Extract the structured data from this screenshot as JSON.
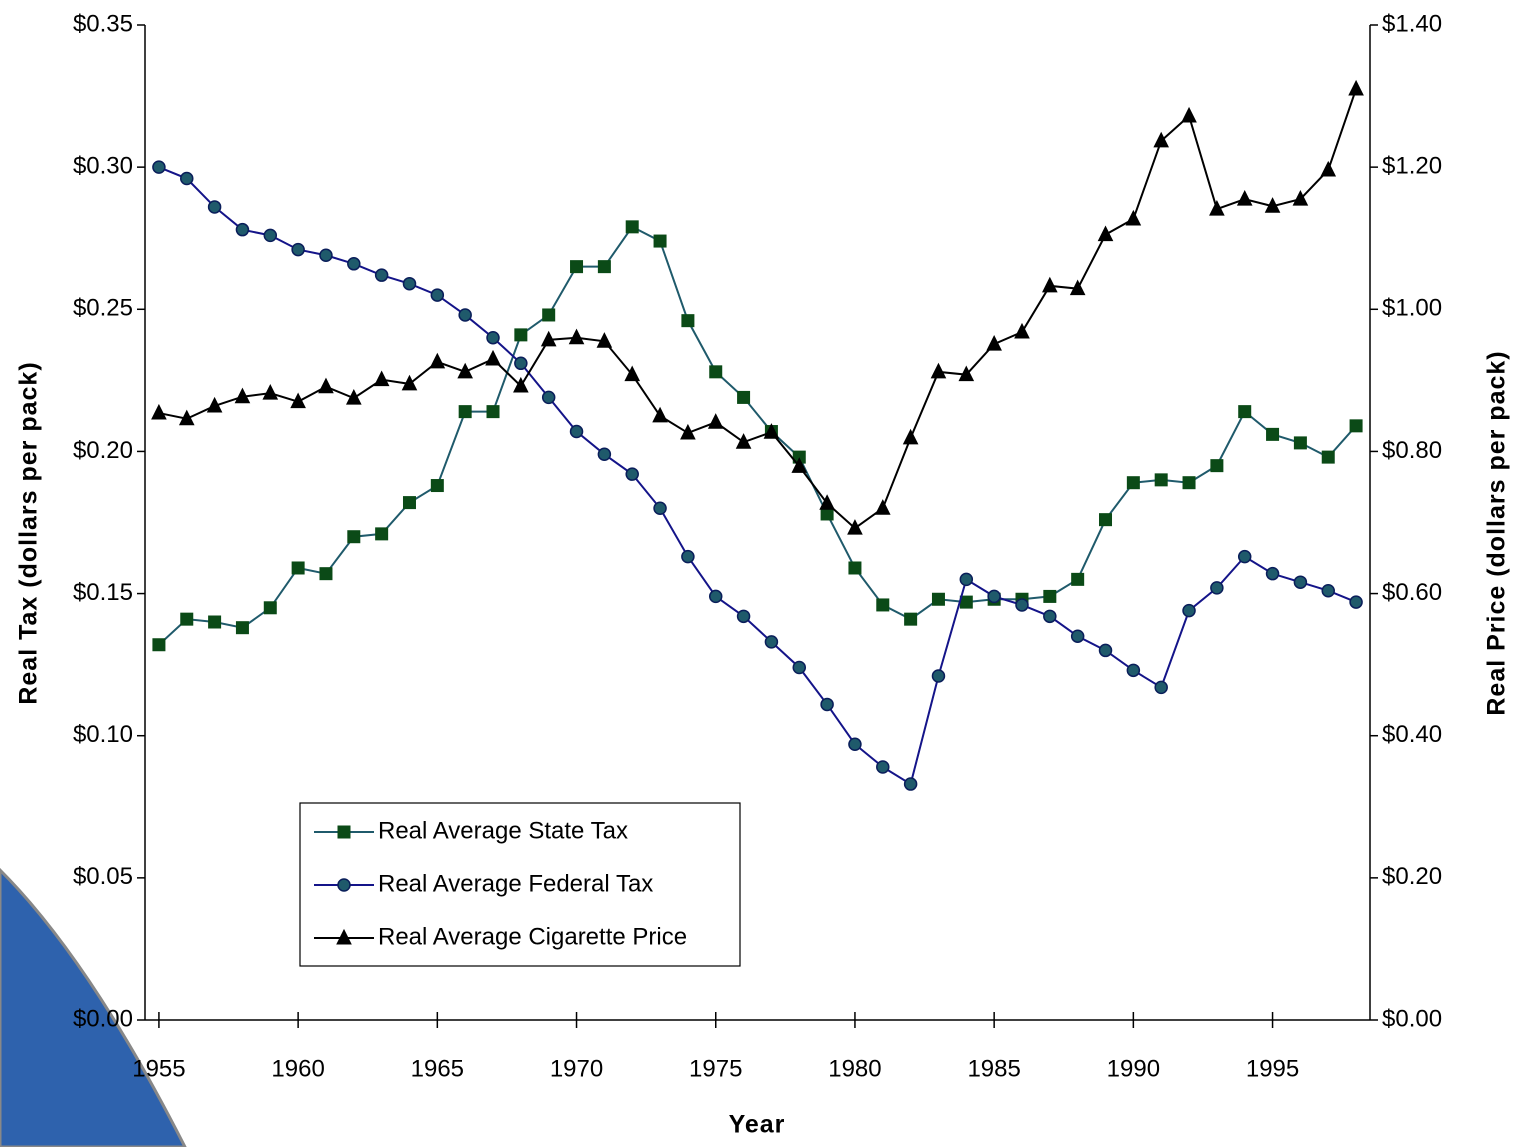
{
  "chart_data": {
    "type": "line",
    "x_label": "Year",
    "y_label": "Real Tax (dollars per pack)",
    "y2_label": "Real Price (dollars per pack)",
    "x": [
      1955,
      1956,
      1957,
      1958,
      1959,
      1960,
      1961,
      1962,
      1963,
      1964,
      1965,
      1966,
      1967,
      1968,
      1969,
      1970,
      1971,
      1972,
      1973,
      1974,
      1975,
      1976,
      1977,
      1978,
      1979,
      1980,
      1981,
      1982,
      1983,
      1984,
      1985,
      1986,
      1987,
      1988,
      1989,
      1990,
      1991,
      1992,
      1993,
      1994,
      1995,
      1996,
      1997,
      1998
    ],
    "xlim": [
      1954.5,
      1998.5
    ],
    "xticks": [
      1955,
      1960,
      1965,
      1970,
      1975,
      1980,
      1985,
      1990,
      1995
    ],
    "ylim": [
      0,
      0.35
    ],
    "yticks": [
      {
        "value": 0,
        "label": "$0.00"
      },
      {
        "value": 0.05,
        "label": "$0.05"
      },
      {
        "value": 0.1,
        "label": "$0.10"
      },
      {
        "value": 0.15,
        "label": "$0.15"
      },
      {
        "value": 0.2,
        "label": "$0.20"
      },
      {
        "value": 0.25,
        "label": "$0.25"
      },
      {
        "value": 0.3,
        "label": "$0.30"
      },
      {
        "value": 0.35,
        "label": "$0.35"
      }
    ],
    "y2lim": [
      0,
      1.4
    ],
    "y2ticks": [
      {
        "value": 0,
        "label": "$0.00"
      },
      {
        "value": 0.2,
        "label": "$0.20"
      },
      {
        "value": 0.4,
        "label": "$0.40"
      },
      {
        "value": 0.6,
        "label": "$0.60"
      },
      {
        "value": 0.8,
        "label": "$0.80"
      },
      {
        "value": 1.0,
        "label": "$1.00"
      },
      {
        "value": 1.2,
        "label": "$1.20"
      },
      {
        "value": 1.4,
        "label": "$1.40"
      }
    ],
    "legend": "lower left",
    "series": [
      {
        "name": "Real Average State Tax",
        "color": "#1f5a6b",
        "marker_color": "#0b4a17",
        "marker": "square",
        "values": [
          0.132,
          0.141,
          0.14,
          0.138,
          0.145,
          0.159,
          0.157,
          0.17,
          0.171,
          0.182,
          0.188,
          0.214,
          0.214,
          0.241,
          0.248,
          0.265,
          0.265,
          0.279,
          0.274,
          0.246,
          0.228,
          0.219,
          0.207,
          0.198,
          0.178,
          0.159,
          0.146,
          0.141,
          0.148,
          0.147,
          0.148,
          0.148,
          0.149,
          0.155,
          0.176,
          0.189,
          0.19,
          0.189,
          0.195,
          0.214,
          0.206,
          0.203,
          0.198,
          0.209
        ]
      },
      {
        "name": "Real Average Federal Tax",
        "color": "#141489",
        "marker_color": "#1f5a6b",
        "marker": "circle",
        "values": [
          0.3,
          0.296,
          0.286,
          0.278,
          0.276,
          0.271,
          0.269,
          0.266,
          0.262,
          0.259,
          0.255,
          0.248,
          0.24,
          0.231,
          0.219,
          0.207,
          0.199,
          0.192,
          0.18,
          0.163,
          0.149,
          0.142,
          0.133,
          0.124,
          0.111,
          0.097,
          0.089,
          0.083,
          0.121,
          0.155,
          0.149,
          0.146,
          0.142,
          0.135,
          0.13,
          0.123,
          0.117,
          0.144,
          0.152,
          0.163,
          0.157,
          0.154,
          0.151,
          0.147
        ]
      },
      {
        "name": "Real Average Cigarette Price",
        "color": "#000000",
        "marker_color": "#000000",
        "marker": "triangle",
        "axis": "y2",
        "values": [
          0.854,
          0.846,
          0.864,
          0.877,
          0.882,
          0.87,
          0.891,
          0.875,
          0.901,
          0.895,
          0.926,
          0.912,
          0.93,
          0.892,
          0.957,
          0.96,
          0.955,
          0.908,
          0.85,
          0.826,
          0.841,
          0.813,
          0.827,
          0.779,
          0.727,
          0.692,
          0.72,
          0.819,
          0.912,
          0.908,
          0.951,
          0.968,
          1.033,
          1.029,
          1.105,
          1.127,
          1.237,
          1.272,
          1.141,
          1.155,
          1.145,
          1.155,
          1.196,
          1.31
        ]
      }
    ]
  }
}
